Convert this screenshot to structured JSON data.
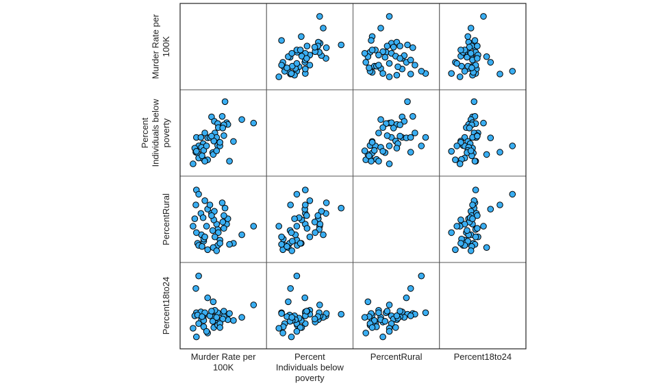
{
  "chart_data": {
    "type": "scatter-matrix",
    "title": "",
    "variables": [
      {
        "key": "murder",
        "label_lines": [
          "Murder Rate per",
          "100K"
        ],
        "range": [
          0.5,
          12.5
        ]
      },
      {
        "key": "poverty",
        "label_lines": [
          "Percent",
          "Individuals below",
          "poverty"
        ],
        "range": [
          7.5,
          22.5
        ]
      },
      {
        "key": "rural",
        "label_lines": [
          "PercentRural"
        ],
        "range": [
          3,
          66
        ]
      },
      {
        "key": "age18to24",
        "label_lines": [
          "Percent18to24"
        ],
        "range": [
          8,
          16.6
        ]
      }
    ],
    "diagonal": "empty",
    "grid": false,
    "point_color": "#3aaef2",
    "point_edge_color": "#000000",
    "observations": [
      [
        6.8,
        22.0,
        45,
        11.2
      ],
      [
        4.4,
        18.6,
        40,
        11.0
      ],
      [
        6.3,
        18.7,
        50,
        11.3
      ],
      [
        4.9,
        17.6,
        42,
        10.8
      ],
      [
        9.8,
        18.0,
        20,
        10.8
      ],
      [
        11.9,
        17.2,
        28,
        12.4
      ],
      [
        7.1,
        17.3,
        30,
        11.0
      ],
      [
        7.3,
        16.9,
        35,
        10.5
      ],
      [
        5.5,
        17.1,
        25,
        11.4
      ],
      [
        6.6,
        16.8,
        38,
        10.9
      ],
      [
        5.6,
        16.2,
        22,
        10.2
      ],
      [
        6.4,
        16.1,
        32,
        10.6
      ],
      [
        5.0,
        15.0,
        18,
        11.7
      ],
      [
        3.2,
        15.0,
        52,
        11.2
      ],
      [
        1.7,
        14.0,
        62,
        11.4
      ],
      [
        2.5,
        14.0,
        40,
        11.5
      ],
      [
        3.7,
        13.9,
        44,
        13.3
      ],
      [
        4.1,
        14.0,
        48,
        11.0
      ],
      [
        5.3,
        14.0,
        30,
        10.0
      ],
      [
        6.6,
        14.4,
        26,
        11.6
      ],
      [
        4.8,
        13.2,
        34,
        9.5
      ],
      [
        8.3,
        13.1,
        12,
        10.4
      ],
      [
        5.5,
        12.2,
        10,
        9.8
      ],
      [
        5.9,
        12.1,
        15,
        10.0
      ],
      [
        2.9,
        12.6,
        36,
        10.7
      ],
      [
        2.1,
        12.1,
        58,
        16.1
      ],
      [
        1.4,
        11.6,
        35,
        11.0
      ],
      [
        1.6,
        10.7,
        48,
        14.5
      ],
      [
        2.6,
        11.8,
        20,
        10.5
      ],
      [
        1.9,
        10.5,
        12,
        11.1
      ],
      [
        3.0,
        11.1,
        14,
        10.4
      ],
      [
        4.6,
        10.6,
        24,
        10.3
      ],
      [
        4.7,
        10.2,
        8,
        12.8
      ],
      [
        2.1,
        9.4,
        10,
        10.0
      ],
      [
        3.0,
        9.1,
        16,
        9.6
      ],
      [
        3.7,
        9.0,
        6,
        8.8
      ],
      [
        3.2,
        8.7,
        18,
        11.4
      ],
      [
        7.6,
        8.7,
        11,
        11.3
      ],
      [
        1.1,
        8.1,
        28,
        9.4
      ],
      [
        5.9,
        12.9,
        12,
        9.5
      ],
      [
        4.4,
        14.3,
        38,
        11.6
      ],
      [
        2.7,
        9.9,
        9,
        10.9
      ],
      [
        1.7,
        10.9,
        22,
        8.3
      ],
      [
        3.5,
        12.1,
        28,
        9.0
      ],
      [
        5.3,
        11.0,
        5,
        10.8
      ]
    ]
  }
}
